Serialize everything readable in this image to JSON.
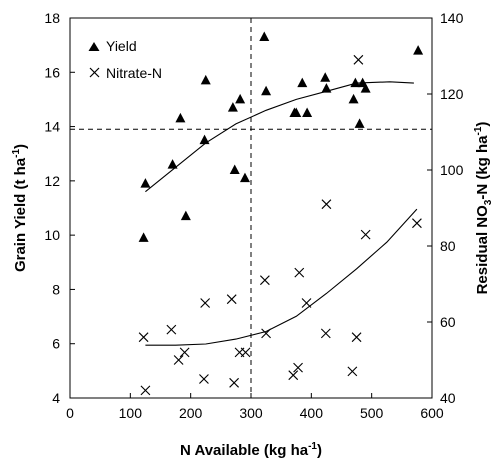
{
  "chart_data": {
    "type": "scatter",
    "x_axis": {
      "label_main": "N Available (kg ha",
      "label_sup": "-1",
      "label_end": ")",
      "range": [
        0,
        600
      ],
      "ticks": [
        0,
        100,
        200,
        300,
        400,
        500,
        600
      ]
    },
    "y_left": {
      "label_main": "Grain Yield (t ha",
      "label_sup": "-1",
      "label_end": ")",
      "range": [
        4,
        18
      ],
      "ticks": [
        4,
        6,
        8,
        10,
        12,
        14,
        16,
        18
      ]
    },
    "y_right": {
      "label_main": "Residual NO",
      "label_sub": "3",
      "label_mid": "-N (kg ha",
      "label_sup": "-1",
      "label_end": ")",
      "range": [
        40,
        140
      ],
      "ticks": [
        40,
        60,
        80,
        100,
        120,
        140
      ]
    },
    "reference_lines": {
      "vertical_x": 300,
      "horizontal_yield": 13.9
    },
    "series": [
      {
        "name": "Yield",
        "marker": "triangle",
        "axis": "left",
        "points": [
          [
            125,
            11.9
          ],
          [
            122,
            9.9
          ],
          [
            170,
            12.6
          ],
          [
            183,
            14.3
          ],
          [
            192,
            10.7
          ],
          [
            223,
            13.5
          ],
          [
            225,
            15.7
          ],
          [
            270,
            14.7
          ],
          [
            273,
            12.4
          ],
          [
            282,
            15.0
          ],
          [
            290,
            12.1
          ],
          [
            322,
            17.3
          ],
          [
            325,
            15.3
          ],
          [
            372,
            14.5
          ],
          [
            375,
            14.5
          ],
          [
            385,
            15.6
          ],
          [
            393,
            14.5
          ],
          [
            423,
            15.8
          ],
          [
            425,
            15.4
          ],
          [
            470,
            15.0
          ],
          [
            473,
            15.6
          ],
          [
            480,
            14.1
          ],
          [
            485,
            15.6
          ],
          [
            490,
            15.4
          ],
          [
            577,
            16.8
          ]
        ],
        "fit": [
          [
            125,
            11.6
          ],
          [
            175,
            12.5
          ],
          [
            225,
            13.4
          ],
          [
            275,
            14.1
          ],
          [
            325,
            14.6
          ],
          [
            375,
            15.0
          ],
          [
            425,
            15.3
          ],
          [
            475,
            15.6
          ],
          [
            530,
            15.65
          ],
          [
            570,
            15.6
          ]
        ]
      },
      {
        "name": "Nitrate-N",
        "marker": "x",
        "axis": "right",
        "points": [
          [
            122,
            56
          ],
          [
            125,
            42
          ],
          [
            168,
            58
          ],
          [
            180,
            50
          ],
          [
            190,
            52
          ],
          [
            222,
            45
          ],
          [
            224,
            65
          ],
          [
            268,
            66
          ],
          [
            272,
            44
          ],
          [
            281,
            52
          ],
          [
            291,
            52
          ],
          [
            323,
            71
          ],
          [
            325,
            57
          ],
          [
            370,
            46
          ],
          [
            378,
            48
          ],
          [
            380,
            73
          ],
          [
            392,
            65
          ],
          [
            424,
            57
          ],
          [
            425,
            91
          ],
          [
            468,
            47
          ],
          [
            475,
            56
          ],
          [
            478,
            129
          ],
          [
            490,
            83
          ],
          [
            575,
            86
          ]
        ],
        "fit": [
          [
            125,
            53.9
          ],
          [
            175,
            53.9
          ],
          [
            225,
            54.2
          ],
          [
            275,
            55.5
          ],
          [
            325,
            57.5
          ],
          [
            375,
            61.5
          ],
          [
            425,
            67.5
          ],
          [
            475,
            74
          ],
          [
            525,
            81
          ],
          [
            575,
            89.7
          ]
        ]
      }
    ],
    "legend": {
      "placement": "top-left",
      "entries": [
        "Yield",
        "Nitrate-N"
      ]
    }
  }
}
